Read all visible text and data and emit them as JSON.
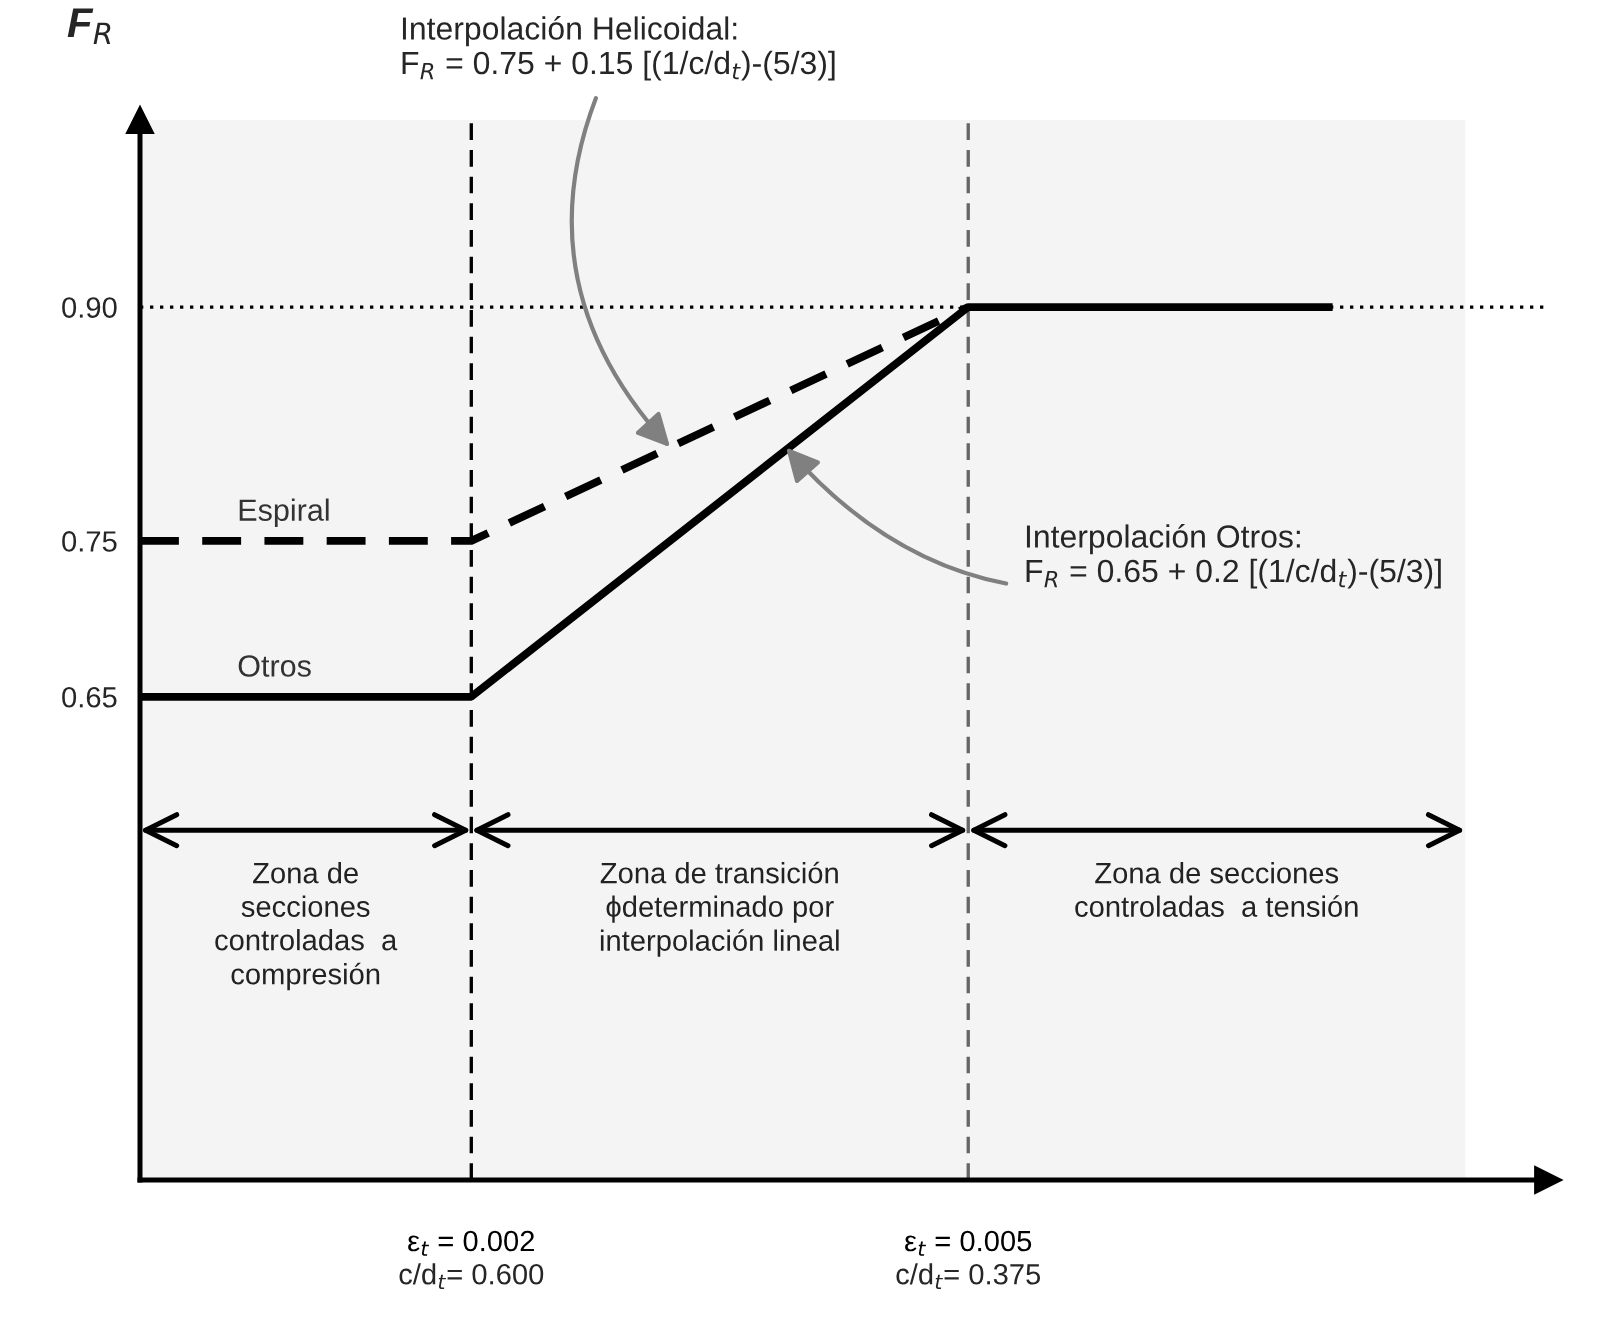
{
  "chart_data": {
    "type": "line",
    "ylabel": "F$_{R}$",
    "xlim": [
      0,
      0.0085
    ],
    "ylim": [
      0.34,
      1.02
    ],
    "xticks": [
      {
        "value": 0.002,
        "label": "ε$_{t}$ = 0.002"
      },
      {
        "value": 0.005,
        "label": "ε$_{t}$ = 0.005"
      }
    ],
    "yticks": [
      {
        "value": 0.65,
        "label": "0.65"
      },
      {
        "value": 0.75,
        "label": "0.75"
      },
      {
        "value": 0.9,
        "label": "0.90"
      }
    ],
    "series": [
      {
        "name": "Espiral",
        "color": "#000000",
        "x": [
          0,
          0.002,
          0.005
        ],
        "values": [
          0.75,
          0.75,
          0.9
        ],
        "line_style": "dashed"
      },
      {
        "name": "Otros",
        "color": "#000000",
        "x": [
          0,
          0.002,
          0.005,
          0.0072
        ],
        "values": [
          0.65,
          0.65,
          0.9,
          0.9
        ],
        "line_style": "solid"
      }
    ],
    "ref_lines": [
      {
        "axis": "x",
        "value": 0.002,
        "color": "#000000",
        "line_style": "dashed"
      },
      {
        "axis": "x",
        "value": 0.005,
        "color": "#666666",
        "line_style": "dashed"
      },
      {
        "axis": "y",
        "value": 0.9,
        "color": "#000000",
        "line_style": "dotted"
      }
    ],
    "bands": [
      {
        "axis": "x",
        "from": 0,
        "to": 0.002,
        "color": "#f4f4f4",
        "label": "Zona de\nsecciones\ncontroladas  a\ncompresión"
      },
      {
        "axis": "x",
        "from": 0.002,
        "to": 0.005,
        "color": "#f4f4f4",
        "label": "Zona de transición\nϕdeterminado por\ninterpolación lineal"
      },
      {
        "axis": "x",
        "from": 0.005,
        "to": 0.008,
        "color": "#f4f4f4",
        "label": "Zona de secciones\ncontroladas  a tensión"
      }
    ],
    "annotations": [
      {
        "text": "Interpolación Helicoidal:\nF$_{R}$ = 0.75 + 0.15 [(1/c/d$_{t}$)-(5/3)]",
        "x": 0.0032,
        "y": 0.81
      },
      {
        "text": "Interpolación Otros:\nF$_{R}$ = 0.65 + 0.2 [(1/c/d$_{t}$)-(5/3)]",
        "x": 0.0039,
        "y": 0.81
      },
      "c/d$_{t}$= 0.600",
      "c/d$_{t}$= 0.375"
    ]
  }
}
